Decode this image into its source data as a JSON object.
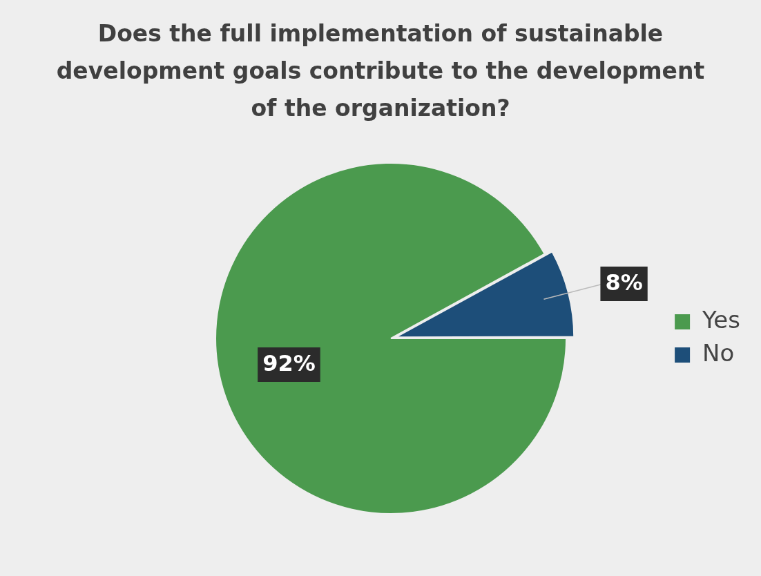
{
  "chart_data": {
    "type": "pie",
    "title": "Does the full implementation of sustainable development goals contribute to the development of the organization?",
    "categories": [
      "Yes",
      "No"
    ],
    "values": [
      92,
      8
    ],
    "colors": [
      "#4b9a4e",
      "#1d4e79"
    ],
    "value_labels": [
      "92%",
      "8%"
    ],
    "legend": "right"
  }
}
